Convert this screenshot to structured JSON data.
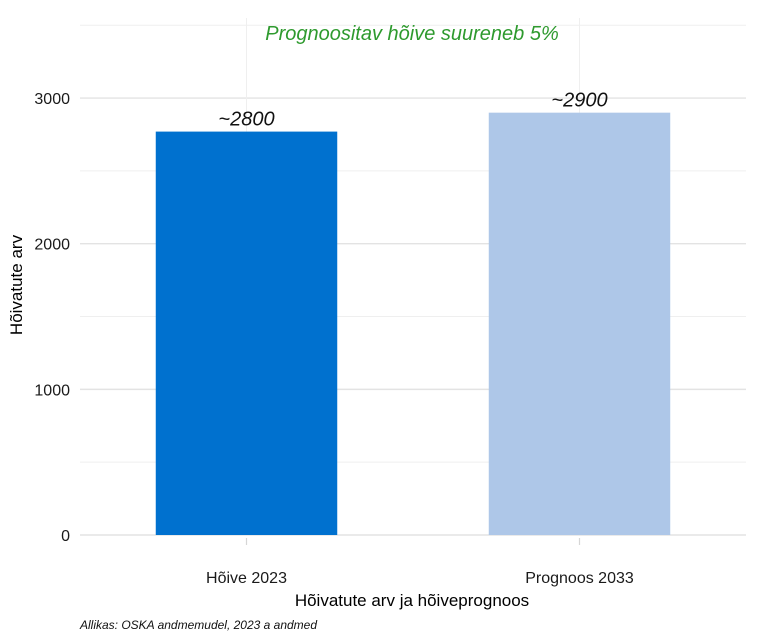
{
  "chart_data": {
    "type": "bar",
    "categories": [
      "Hõive 2023",
      "Prognoos 2033"
    ],
    "values": [
      2770,
      2900
    ],
    "data_labels": [
      "~2800",
      "~2900"
    ],
    "bar_colors": [
      "#0071cf",
      "#aec7e8"
    ],
    "annotation": "Prognoositav hõive suureneb 5%",
    "annotation_color": "#2e9a2e",
    "xlabel": "Hõivatute arv ja hõiveprognoos",
    "ylabel": "Hõivatute arv",
    "yticks": [
      0,
      1000,
      2000,
      3000
    ],
    "ylim": [
      0,
      3550
    ],
    "grid": true,
    "caption": "Allikas: OSKA andmemudel, 2023 a andmed"
  }
}
